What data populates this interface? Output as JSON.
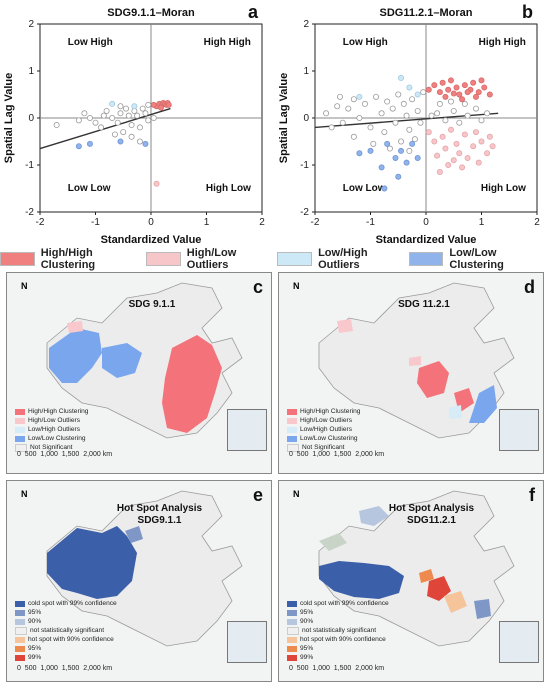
{
  "chart_data": [
    {
      "type": "scatter",
      "title": "SDG9.1.1–Moran",
      "panel_label": "a",
      "xlabel": "Standardized Value",
      "ylabel": "Spatial Lag Value",
      "xlim": [
        -2,
        2
      ],
      "ylim": [
        -2,
        2
      ],
      "xticks": [
        "-2",
        "-1",
        "0",
        "1",
        "2"
      ],
      "yticks": [
        "-2",
        "-1",
        "0",
        "1",
        "2"
      ],
      "quadrants": {
        "tl": "Low High",
        "tr": "High High",
        "bl": "Low Low",
        "br": "High Low"
      },
      "regression_line": {
        "x": [
          -2,
          0.35
        ],
        "y": [
          -0.65,
          0.2
        ]
      },
      "points": {
        "not_significant": [
          [
            -1.7,
            -0.15
          ],
          [
            -1.3,
            -0.05
          ],
          [
            -1.1,
            0.0
          ],
          [
            -1.0,
            -0.1
          ],
          [
            -0.9,
            -0.2
          ],
          [
            -0.85,
            0.05
          ],
          [
            -0.7,
            0.0
          ],
          [
            -0.6,
            -0.1
          ],
          [
            -0.55,
            0.1
          ],
          [
            -0.5,
            -0.3
          ],
          [
            -0.4,
            0.05
          ],
          [
            -0.35,
            -0.15
          ],
          [
            -0.3,
            0.15
          ],
          [
            -0.25,
            0.05
          ],
          [
            -0.2,
            -0.2
          ],
          [
            -0.15,
            0.2
          ],
          [
            -0.1,
            0.1
          ],
          [
            -0.05,
            -0.05
          ],
          [
            -0.45,
            0.2
          ],
          [
            -0.8,
            0.15
          ],
          [
            -1.2,
            0.1
          ],
          [
            -0.65,
            -0.35
          ],
          [
            -0.35,
            -0.4
          ],
          [
            0.05,
            0.0
          ],
          [
            -0.2,
            -0.5
          ],
          [
            -0.05,
            0.28
          ],
          [
            -0.55,
            0.25
          ]
        ],
        "high_high": [
          [
            0.1,
            0.25
          ],
          [
            0.15,
            0.3
          ],
          [
            0.2,
            0.28
          ],
          [
            0.22,
            0.32
          ],
          [
            0.25,
            0.3
          ],
          [
            0.28,
            0.28
          ],
          [
            0.3,
            0.32
          ],
          [
            0.32,
            0.28
          ],
          [
            0.18,
            0.22
          ],
          [
            0.05,
            0.28
          ]
        ],
        "high_low": [
          [
            0.1,
            -1.4
          ]
        ],
        "low_high": [
          [
            -0.3,
            0.25
          ],
          [
            -0.7,
            0.3
          ]
        ],
        "low_low": [
          [
            -1.3,
            -0.6
          ],
          [
            -1.1,
            -0.55
          ],
          [
            -0.55,
            -0.5
          ],
          [
            -0.1,
            -0.55
          ]
        ]
      }
    },
    {
      "type": "scatter",
      "title": "SDG11.2.1–Moran",
      "panel_label": "b",
      "xlabel": "Standardized Value",
      "ylabel": "Spatial Lag Value",
      "xlim": [
        -2,
        2
      ],
      "ylim": [
        -2,
        2
      ],
      "xticks": [
        "-2",
        "-1",
        "0",
        "1",
        "2"
      ],
      "yticks": [
        "-2",
        "-1",
        "0",
        "1",
        "2"
      ],
      "quadrants": {
        "tl": "Low High",
        "tr": "High High",
        "bl": "Low Low",
        "br": "High Low"
      },
      "regression_line": {
        "x": [
          -2,
          1.3
        ],
        "y": [
          -0.2,
          0.1
        ]
      },
      "points": {
        "not_significant": [
          [
            -1.8,
            0.1
          ],
          [
            -1.7,
            -0.2
          ],
          [
            -1.6,
            0.25
          ],
          [
            -1.5,
            -0.1
          ],
          [
            -1.4,
            0.2
          ],
          [
            -1.3,
            0.4
          ],
          [
            -1.2,
            0.0
          ],
          [
            -1.1,
            0.3
          ],
          [
            -1.0,
            -0.2
          ],
          [
            -0.9,
            0.45
          ],
          [
            -0.8,
            0.1
          ],
          [
            -0.75,
            -0.3
          ],
          [
            -0.7,
            0.35
          ],
          [
            -0.6,
            0.2
          ],
          [
            -0.55,
            -0.1
          ],
          [
            -0.5,
            0.5
          ],
          [
            -0.45,
            -0.5
          ],
          [
            -0.4,
            0.3
          ],
          [
            -0.35,
            0.05
          ],
          [
            -0.3,
            -0.25
          ],
          [
            -0.25,
            0.4
          ],
          [
            -0.2,
            -0.45
          ],
          [
            -0.15,
            0.15
          ],
          [
            -0.1,
            -0.1
          ],
          [
            -0.05,
            0.55
          ],
          [
            -1.3,
            -0.4
          ],
          [
            -0.95,
            -0.55
          ],
          [
            -0.65,
            -0.65
          ],
          [
            -0.3,
            -0.7
          ],
          [
            -1.55,
            0.45
          ],
          [
            0.1,
            0.05
          ],
          [
            0.2,
            0.1
          ],
          [
            0.35,
            -0.05
          ],
          [
            0.5,
            0.15
          ],
          [
            0.6,
            -0.1
          ],
          [
            0.75,
            0.05
          ],
          [
            0.9,
            0.2
          ],
          [
            1.0,
            -0.05
          ],
          [
            1.1,
            0.1
          ],
          [
            0.25,
            0.3
          ],
          [
            0.45,
            0.35
          ],
          [
            0.7,
            0.3
          ]
        ],
        "high_high": [
          [
            0.05,
            0.6
          ],
          [
            0.15,
            0.7
          ],
          [
            0.25,
            0.55
          ],
          [
            0.3,
            0.75
          ],
          [
            0.4,
            0.6
          ],
          [
            0.45,
            0.8
          ],
          [
            0.55,
            0.65
          ],
          [
            0.6,
            0.5
          ],
          [
            0.7,
            0.7
          ],
          [
            0.8,
            0.6
          ],
          [
            0.85,
            0.75
          ],
          [
            0.95,
            0.55
          ],
          [
            1.05,
            0.65
          ],
          [
            1.15,
            0.5
          ],
          [
            0.35,
            0.45
          ],
          [
            0.65,
            0.4
          ],
          [
            0.75,
            0.55
          ],
          [
            1.0,
            0.8
          ],
          [
            0.5,
            0.52
          ],
          [
            0.9,
            0.45
          ]
        ],
        "high_low": [
          [
            0.05,
            -0.3
          ],
          [
            0.15,
            -0.5
          ],
          [
            0.2,
            -0.8
          ],
          [
            0.3,
            -0.4
          ],
          [
            0.35,
            -0.65
          ],
          [
            0.45,
            -0.25
          ],
          [
            0.5,
            -0.9
          ],
          [
            0.55,
            -0.55
          ],
          [
            0.6,
            -0.75
          ],
          [
            0.7,
            -0.35
          ],
          [
            0.75,
            -0.85
          ],
          [
            0.85,
            -0.6
          ],
          [
            0.9,
            -0.3
          ],
          [
            1.0,
            -0.5
          ],
          [
            1.1,
            -0.75
          ],
          [
            1.15,
            -0.4
          ],
          [
            0.4,
            -1.0
          ],
          [
            0.25,
            -1.15
          ],
          [
            0.65,
            -1.05
          ],
          [
            0.95,
            -0.95
          ],
          [
            1.2,
            -0.6
          ]
        ],
        "low_high": [
          [
            -0.45,
            0.85
          ],
          [
            -0.3,
            0.65
          ],
          [
            -1.2,
            0.45
          ],
          [
            -0.15,
            0.5
          ]
        ],
        "low_low": [
          [
            -1.2,
            -0.75
          ],
          [
            -1.0,
            -0.7
          ],
          [
            -0.8,
            -1.05
          ],
          [
            -0.7,
            -0.55
          ],
          [
            -0.55,
            -0.85
          ],
          [
            -0.45,
            -0.7
          ],
          [
            -0.35,
            -0.95
          ],
          [
            -0.25,
            -0.55
          ],
          [
            -0.15,
            -0.85
          ],
          [
            -0.75,
            -1.5
          ],
          [
            -0.5,
            -1.25
          ]
        ]
      }
    }
  ],
  "colors": {
    "high_high": "#f08080",
    "high_low": "#f7c6c9",
    "low_high": "#cde8f6",
    "low_low": "#8fb3ea",
    "not_significant": "#ffffff",
    "cold99": "#3b5fa8",
    "cold95": "#7f97c6",
    "cold90": "#b7c6df",
    "ns": "#f0f0f0",
    "hot90": "#f6c49b",
    "hot95": "#ef8a4f",
    "hot99": "#e0453a",
    "hh_fill": "#f4727a",
    "hl_fill": "#f8c8cc",
    "lh_fill": "#d6ecf7",
    "ll_fill": "#7aa6ee"
  },
  "legend": {
    "hh": "High/High Clustering",
    "hl": "High/Low Outliers",
    "lh": "Low/High Outliers",
    "ll": "Low/Low Clustering"
  },
  "maps": {
    "c": {
      "letter": "c",
      "title": "SDG 9.1.1",
      "north": "N",
      "legend": [
        "High/High Clustering",
        "High/Low Outliers",
        "Low/High Outliers",
        "Low/Low Clustering",
        "Not Significant"
      ],
      "scale": [
        "0",
        "500",
        "1,000",
        "1,500",
        "2,000"
      ],
      "scale_unit": "km"
    },
    "d": {
      "letter": "d",
      "title": "SDG 11.2.1",
      "north": "N",
      "legend": [
        "High/High Clustering",
        "High/Low Outliers",
        "Low/High Outliers",
        "Low/Low Clustering",
        "Not Significant"
      ],
      "scale": [
        "0",
        "500",
        "1,000",
        "1,500",
        "2,000"
      ],
      "scale_unit": "km"
    },
    "e": {
      "letter": "e",
      "title1": "Hot Spot Analysis",
      "title2": "SDG9.1.1",
      "north": "N",
      "legend": [
        "cold spot with 99% confidence",
        "95%",
        "90%",
        "not statistically significant",
        "hot spot with 90% confidence",
        "95%",
        "99%"
      ],
      "scale": [
        "0",
        "500",
        "1,000",
        "1,500",
        "2,000"
      ],
      "scale_unit": "km"
    },
    "f": {
      "letter": "f",
      "title1": "Hot Spot Analysis",
      "title2": "SDG11.2.1",
      "north": "N",
      "legend": [
        "cold spot with 99% confidence",
        "95%",
        "90%",
        "not statistically significant",
        "hot spot with 90% confidence",
        "95%",
        "99%"
      ],
      "scale": [
        "0",
        "500",
        "1,000",
        "1,500",
        "2,000"
      ],
      "scale_unit": "km"
    }
  }
}
